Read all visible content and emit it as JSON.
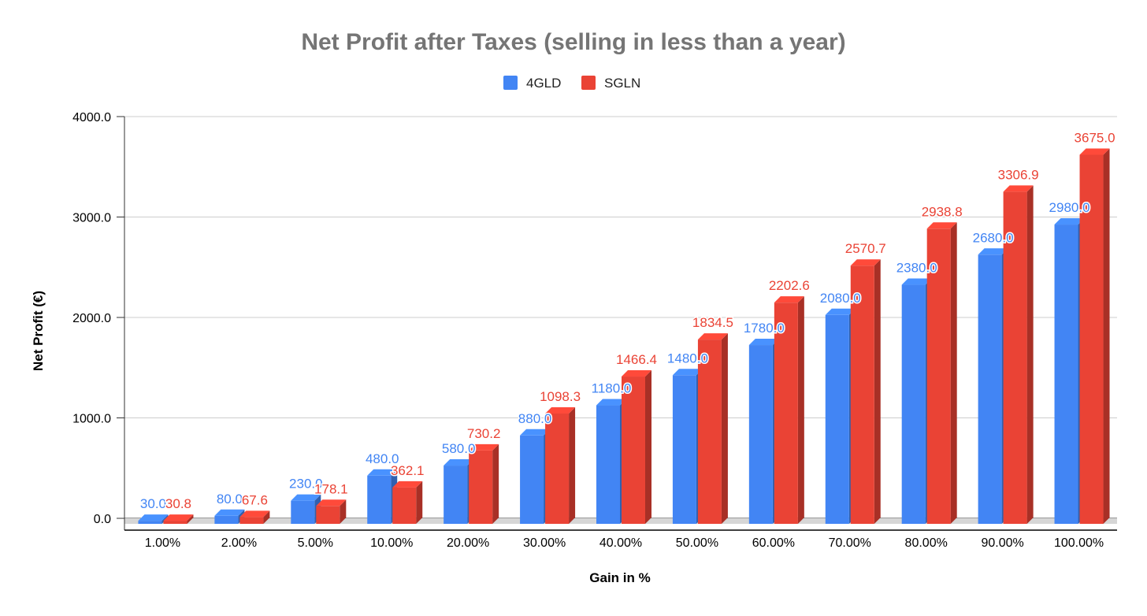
{
  "chart_data": {
    "type": "bar",
    "title": "Net Profit after Taxes (selling in less than a year)",
    "xlabel": "Gain in %",
    "ylabel": "Net Profit (€)",
    "categories": [
      "1.00%",
      "2.00%",
      "5.00%",
      "10.00%",
      "20.00%",
      "30.00%",
      "40.00%",
      "50.00%",
      "60.00%",
      "70.00%",
      "80.00%",
      "90.00%",
      "100.00%"
    ],
    "series": [
      {
        "name": "4GLD",
        "color": "#4285f4",
        "values": [
          30.0,
          80.0,
          230.0,
          480.0,
          580.0,
          880.0,
          1180.0,
          1480.0,
          1780.0,
          2080.0,
          2380.0,
          2680.0,
          2980.0
        ],
        "labels": [
          "30.0",
          "80.0",
          "230.0",
          "480.0",
          "580.0",
          "880.0",
          "1180.0",
          "1480.0",
          "1780.0",
          "2080.0",
          "2380.0",
          "2680.0",
          "2980.0"
        ]
      },
      {
        "name": "SGLN",
        "color": "#ea4335",
        "values": [
          30.8,
          67.6,
          178.1,
          362.1,
          730.2,
          1098.3,
          1466.4,
          1834.5,
          2202.6,
          2570.7,
          2938.8,
          3306.9,
          3675.0
        ],
        "labels": [
          "30.8",
          "67.6",
          "178.1",
          "362.1",
          "730.2",
          "1098.3",
          "1466.4",
          "1834.5",
          "2202.6",
          "2570.7",
          "2938.8",
          "3306.9",
          "3675.0"
        ]
      }
    ],
    "yticks": [
      "0.0",
      "1000.0",
      "2000.0",
      "3000.0",
      "4000.0"
    ],
    "ylim": [
      0,
      4000
    ],
    "grid": true,
    "legend_position": "top-center",
    "style": "3d-bars"
  }
}
